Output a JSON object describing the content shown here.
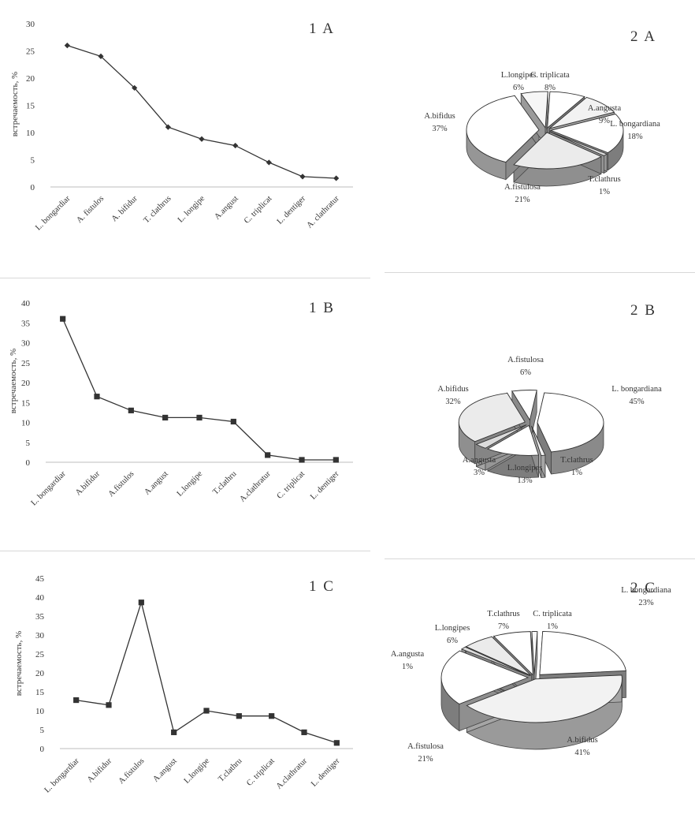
{
  "chart_data": [
    {
      "id": "line_1a",
      "type": "line",
      "title": "1 A",
      "ylabel": "встречаемость, %",
      "categories": [
        "L. bongardiar",
        "A. fistulos",
        "A. bifidur",
        "T. clathrus",
        "L. longipe",
        "A.angust",
        "C. triplicat",
        "L. dentiger",
        "A. clathratur"
      ],
      "values": [
        26,
        24,
        18.2,
        11,
        8.8,
        7.6,
        4.5,
        1.9,
        1.6
      ],
      "ylim": [
        0,
        30
      ],
      "yticks": [
        0,
        5,
        10,
        15,
        20,
        25,
        30
      ],
      "marker": "diamond",
      "grid": false
    },
    {
      "id": "pie_2a",
      "type": "pie",
      "title": "2 A",
      "slices": [
        {
          "label": "C. triplicata",
          "value": 8,
          "pct": "8%"
        },
        {
          "label": "A.angusta",
          "value": 9,
          "pct": "9%"
        },
        {
          "label": "L. bongardiana",
          "value": 18,
          "pct": "18%"
        },
        {
          "label": "T.clathrus",
          "value": 1,
          "pct": "1%"
        },
        {
          "label": "A.fistulosa",
          "value": 21,
          "pct": "21%"
        },
        {
          "label": "A.bifidus",
          "value": 37,
          "pct": "37%"
        },
        {
          "label": "L.longipes",
          "value": 6,
          "pct": "6%"
        }
      ]
    },
    {
      "id": "line_1b",
      "type": "line",
      "title": "1 B",
      "ylabel": "встречаемость, %",
      "categories": [
        "L. bongardiar",
        "A.bifidur",
        "A.fistulos",
        "A.angust",
        "L.longipe",
        "T.clathru",
        "A.clathratur",
        "C. triplicat",
        "L. dentiger"
      ],
      "values": [
        36,
        16.5,
        13,
        11.2,
        11.2,
        10.2,
        1.8,
        0.6,
        0.6
      ],
      "ylim": [
        0,
        40
      ],
      "yticks": [
        0,
        5,
        10,
        15,
        20,
        25,
        30,
        35,
        40
      ],
      "marker": "square",
      "grid": false
    },
    {
      "id": "pie_2b",
      "type": "pie",
      "title": "2 B",
      "slices": [
        {
          "label": "L. bongardiana",
          "value": 45,
          "pct": "45%"
        },
        {
          "label": "T.clathrus",
          "value": 1,
          "pct": "1%"
        },
        {
          "label": "L.longipes",
          "value": 13,
          "pct": "13%"
        },
        {
          "label": "A.angusta",
          "value": 3,
          "pct": "3%"
        },
        {
          "label": "A.bifidus",
          "value": 32,
          "pct": "32%"
        },
        {
          "label": "A.fistulosa",
          "value": 6,
          "pct": "6%"
        }
      ]
    },
    {
      "id": "line_1c",
      "type": "line",
      "title": "1 C",
      "ylabel": "встречаемость, %",
      "categories": [
        "L. bongardiar",
        "A.bifidur",
        "A.fistulos",
        "A.angust",
        "L.longipe",
        "T.clathru",
        "C. triplicat",
        "A.clathratur",
        "L. dentiger"
      ],
      "values": [
        12.8,
        11.5,
        38.6,
        4.3,
        10,
        8.6,
        8.6,
        4.3,
        1.5
      ],
      "ylim": [
        0,
        45
      ],
      "yticks": [
        0,
        5,
        10,
        15,
        20,
        25,
        30,
        35,
        40,
        45
      ],
      "marker": "square",
      "grid": false
    },
    {
      "id": "pie_2c",
      "type": "pie",
      "title": "2 C",
      "slices": [
        {
          "label": "L. bongardiana",
          "value": 23,
          "pct": "23%"
        },
        {
          "label": "A.bifidus",
          "value": 41,
          "pct": "41%"
        },
        {
          "label": "A.fistulosa",
          "value": 21,
          "pct": "21%"
        },
        {
          "label": "A.angusta",
          "value": 1,
          "pct": "1%"
        },
        {
          "label": "L.longipes",
          "value": 6,
          "pct": "6%"
        },
        {
          "label": "T.clathrus",
          "value": 7,
          "pct": "7%"
        },
        {
          "label": "C. triplicata",
          "value": 1,
          "pct": "1%"
        }
      ]
    }
  ]
}
